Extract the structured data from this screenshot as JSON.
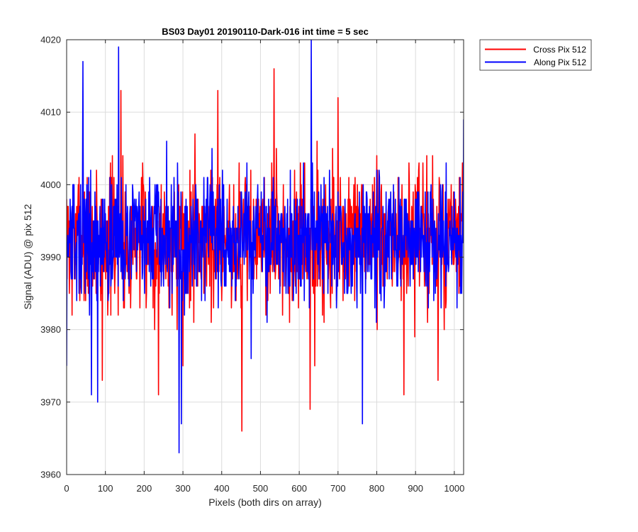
{
  "chart_data": {
    "type": "line",
    "title": "BS03 Day01 20190110-Dark-016 int time = 5 sec",
    "xlabel": "Pixels (both dirs on array)",
    "ylabel": "Signal (ADU) @ pix 512",
    "xlim": [
      0,
      1024
    ],
    "ylim": [
      3960,
      4020
    ],
    "xticks": [
      0,
      100,
      200,
      300,
      400,
      500,
      600,
      700,
      800,
      900,
      1000
    ],
    "yticks": [
      3960,
      3970,
      3980,
      3990,
      4000,
      4010,
      4020
    ],
    "grid": true,
    "legend_position": "outside-top-right",
    "noise_mean": 3992.5,
    "series": [
      {
        "name": "Cross Pix 512",
        "color": "#ff0000",
        "noise_amplitude": 7.8,
        "seed": 7,
        "extremes": [
          [
            92,
            3973
          ],
          [
            140,
            4013
          ],
          [
            237,
            3971
          ],
          [
            300,
            3975
          ],
          [
            390,
            4013
          ],
          [
            452,
            3966
          ],
          [
            535,
            4016
          ],
          [
            628,
            3969
          ],
          [
            640,
            3975
          ],
          [
            700,
            4012
          ],
          [
            870,
            3971
          ],
          [
            958,
            3973
          ]
        ]
      },
      {
        "name": "Along Pix 512",
        "color": "#0000ff",
        "noise_amplitude": 6.8,
        "seed": 13,
        "extremes": [
          [
            0,
            3975
          ],
          [
            42,
            4017
          ],
          [
            64,
            3971
          ],
          [
            80,
            3970
          ],
          [
            134,
            4019
          ],
          [
            258,
            4006
          ],
          [
            290,
            3963
          ],
          [
            296,
            3967
          ],
          [
            476,
            3976
          ],
          [
            631,
            4020
          ],
          [
            763,
            3967
          ],
          [
            1024,
            4009
          ]
        ]
      }
    ]
  }
}
